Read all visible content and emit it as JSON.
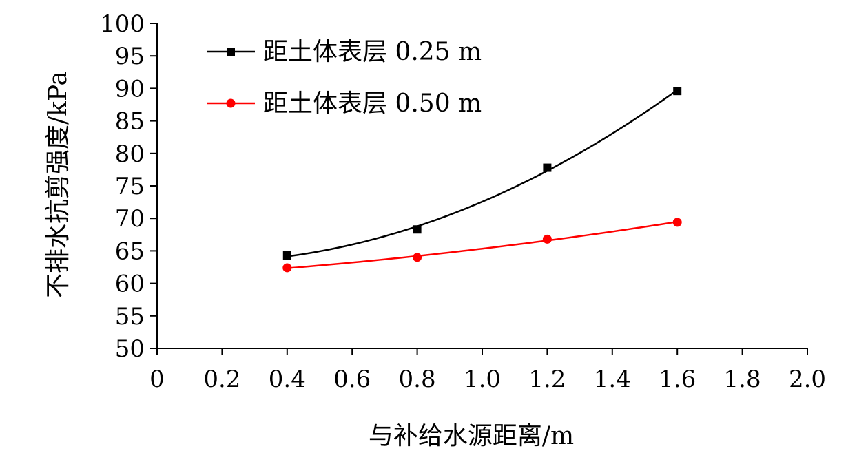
{
  "chart_data": {
    "type": "line",
    "xlabel": "与补给水源距离/m",
    "ylabel": "不排水抗剪强度/kPa",
    "xlim": [
      0,
      2.0
    ],
    "ylim": [
      50,
      100
    ],
    "xticks": [
      "0",
      "0.2",
      "0.4",
      "0.6",
      "0.8",
      "1.0",
      "1.2",
      "1.4",
      "1.6",
      "1.8",
      "2.0"
    ],
    "yticks": [
      "50",
      "55",
      "60",
      "65",
      "70",
      "75",
      "80",
      "85",
      "90",
      "95",
      "100"
    ],
    "grid": false,
    "legend_position": "top-left",
    "series": [
      {
        "name": "距土体表层 0.25 m",
        "color": "#000000",
        "marker": "square",
        "x": [
          0.4,
          0.8,
          1.2,
          1.6
        ],
        "y": [
          64.3,
          68.3,
          77.8,
          89.6
        ],
        "trend": "smooth"
      },
      {
        "name": "距土体表层 0.50 m",
        "color": "#ff0000",
        "marker": "circle",
        "x": [
          0.4,
          0.8,
          1.2,
          1.6
        ],
        "y": [
          62.4,
          64.0,
          66.8,
          69.4
        ],
        "trend": "smooth"
      }
    ]
  }
}
